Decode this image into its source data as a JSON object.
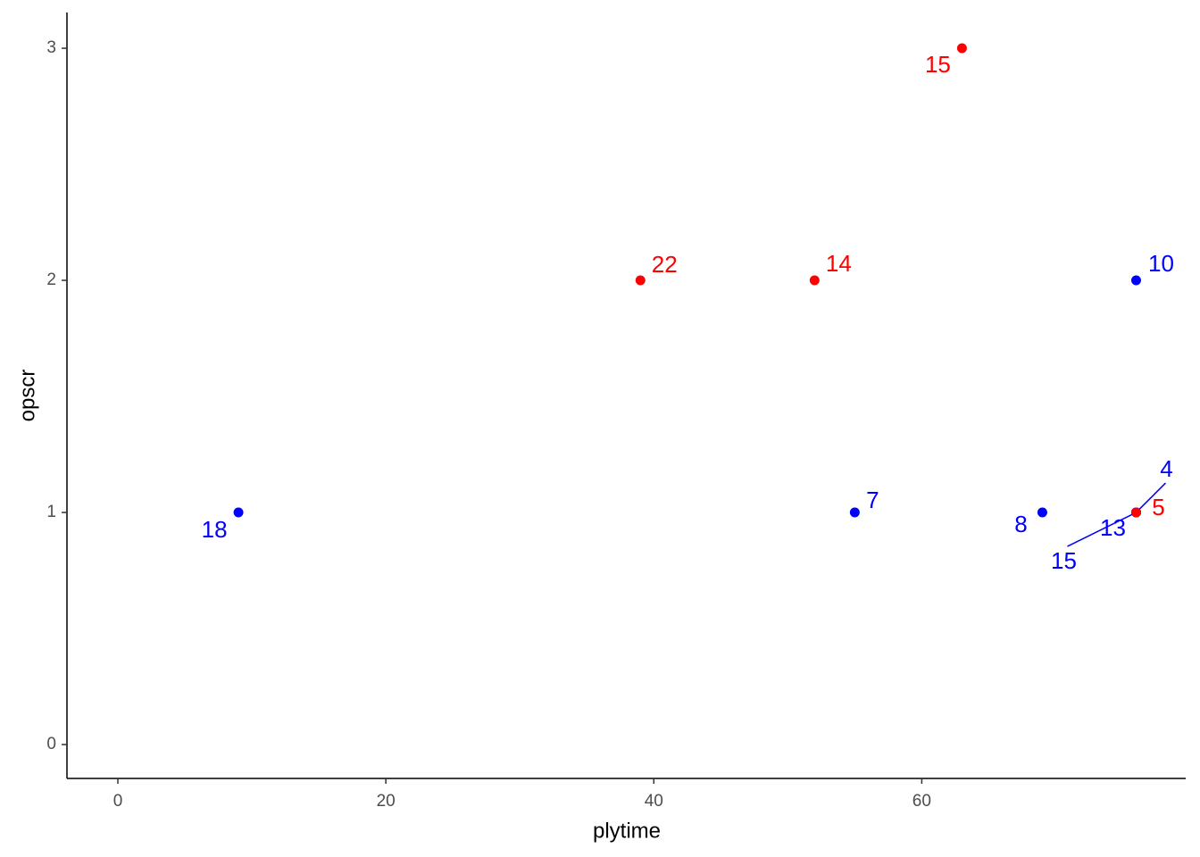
{
  "chart_data": {
    "type": "scatter",
    "x_label": "plytime",
    "y_label": "opscr",
    "xlim": [
      -3.8,
      79.7
    ],
    "ylim": [
      -0.146,
      3.154
    ],
    "xticks": [
      0,
      20,
      40,
      60
    ],
    "yticks": [
      0,
      1,
      2,
      3
    ],
    "grid": false,
    "series": [
      {
        "color": "#0000ff",
        "x": [
          9,
          55,
          69,
          76,
          76,
          76,
          76
        ],
        "values": [
          1,
          1,
          1,
          2,
          1,
          1,
          1
        ],
        "labels": [
          "18",
          "7",
          "8",
          "10",
          "13",
          "15",
          "4"
        ]
      },
      {
        "color": "#ff0000",
        "x": [
          39,
          52,
          63,
          76
        ],
        "values": [
          2,
          2,
          3,
          1
        ],
        "labels": [
          "22",
          "14",
          "15",
          "5"
        ]
      }
    ]
  }
}
